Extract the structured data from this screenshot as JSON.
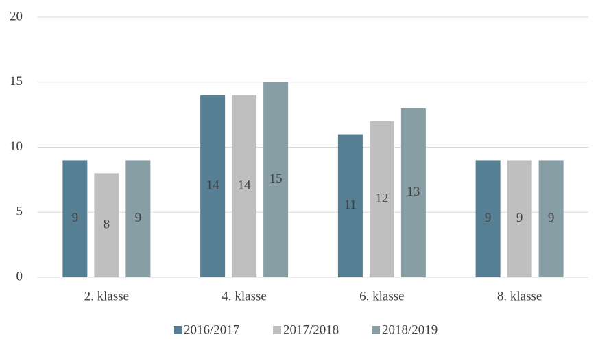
{
  "chart_data": {
    "type": "bar",
    "categories": [
      "2. klasse",
      "4. klasse",
      "6. klasse",
      "8. klasse"
    ],
    "series": [
      {
        "name": "2016/2017",
        "color": "#577f94",
        "values": [
          9,
          14,
          11,
          9
        ]
      },
      {
        "name": "2017/2018",
        "color": "#bfbfbf",
        "values": [
          8,
          14,
          12,
          9
        ]
      },
      {
        "name": "2018/2019",
        "color": "#879ea5",
        "values": [
          9,
          15,
          13,
          9
        ]
      }
    ],
    "ylim": [
      0,
      20
    ],
    "yticks": [
      0,
      5,
      10,
      15,
      20
    ],
    "grid": true,
    "legend": "bottom",
    "data_labels": true
  }
}
